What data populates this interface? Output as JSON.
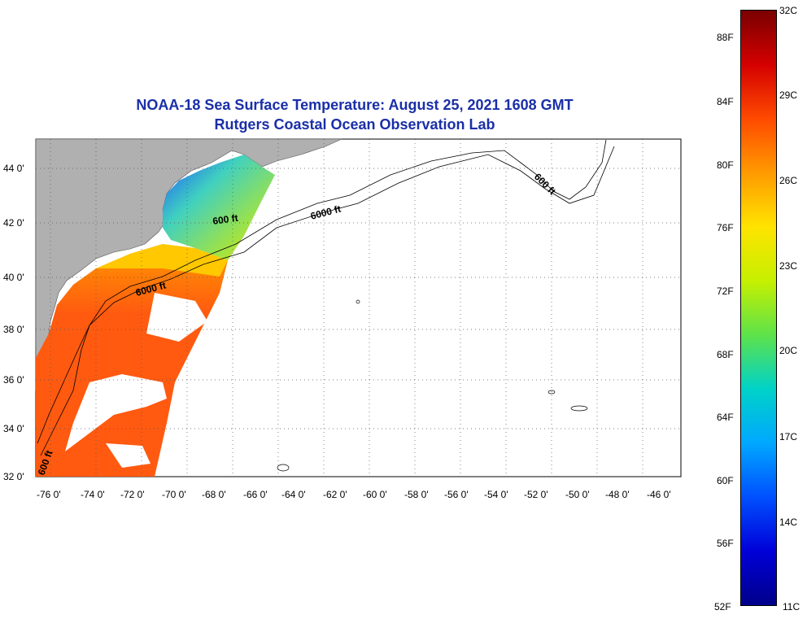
{
  "title": {
    "line1": "NOAA-18 Sea Surface Temperature:  August 25, 2021 1608 GMT",
    "line2": "Rutgers Coastal Ocean Observation Lab"
  },
  "map": {
    "lon_ticks": [
      "-76 0'",
      "-74 0'",
      "-72 0'",
      "-70 0'",
      "-68 0'",
      "-66 0'",
      "-64 0'",
      "-62 0'",
      "-60 0'",
      "-58 0'",
      "-56 0'",
      "-54 0'",
      "-52 0'",
      "-50 0'",
      "-48 0'",
      "-46 0'"
    ],
    "lat_ticks": [
      "44 0'",
      "42 0'",
      "40 0'",
      "38 0'",
      "36 0'",
      "34 0'",
      "32 0'"
    ],
    "contour_labels": [
      "600 ft",
      "6000 ft",
      "6000 ft",
      "600 ft",
      "600 ft"
    ],
    "colors": {
      "land": "#b0b0b0",
      "grid": "#555555",
      "title": "#1a2fa8"
    }
  },
  "colorbar": {
    "fahrenheit": [
      "88F",
      "84F",
      "80F",
      "76F",
      "72F",
      "68F",
      "64F",
      "60F",
      "56F",
      "52F"
    ],
    "celsius": [
      "32C",
      "29C",
      "26C",
      "23C",
      "20C",
      "17C",
      "14C",
      "11C"
    ],
    "colors": [
      "#7a0000",
      "#d40000",
      "#ff4a00",
      "#ff9a00",
      "#ffe400",
      "#c6f000",
      "#5ee24a",
      "#00d2c8",
      "#00a8ff",
      "#0050ff",
      "#0000d8",
      "#00008a"
    ]
  }
}
